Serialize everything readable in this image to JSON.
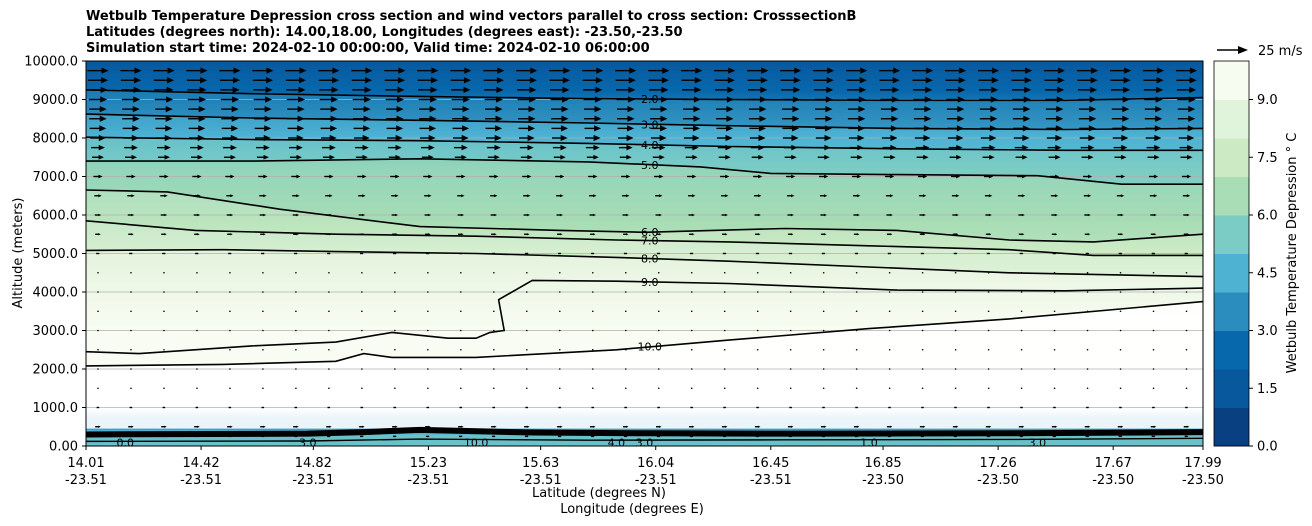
{
  "chart_data": {
    "type": "contour",
    "title": [
      "Wetbulb Temperature Depression cross section and wind vectors parallel to cross section: CrosssectionB",
      "Latitudes (degrees north): 14.00,18.00, Longitudes (degrees east): -23.50,-23.50",
      "Simulation start time: 2024-02-10 00:00:00, Valid time: 2024-02-10 06:00:00"
    ],
    "ylabel": "Altitude (meters)",
    "xlabel_lat": "Latitude (degrees N)",
    "xlabel_lon": "Longitude (degrees E)",
    "ylim": [
      0,
      10000
    ],
    "yticks": [
      "0.00",
      "1000.0",
      "2000.0",
      "3000.0",
      "4000.0",
      "5000.0",
      "6000.0",
      "7000.0",
      "8000.0",
      "9000.0",
      "10000.0"
    ],
    "xlim": [
      14.01,
      17.99
    ],
    "xticks": [
      {
        "lat": 14.01,
        "lat_label": "14.01",
        "lon_label": "-23.51"
      },
      {
        "lat": 14.42,
        "lat_label": "14.42",
        "lon_label": "-23.51"
      },
      {
        "lat": 14.82,
        "lat_label": "14.82",
        "lon_label": "-23.51"
      },
      {
        "lat": 15.23,
        "lat_label": "15.23",
        "lon_label": "-23.51"
      },
      {
        "lat": 15.63,
        "lat_label": "15.63",
        "lon_label": "-23.51"
      },
      {
        "lat": 16.04,
        "lat_label": "16.04",
        "lon_label": "-23.51"
      },
      {
        "lat": 16.45,
        "lat_label": "16.45",
        "lon_label": "-23.51"
      },
      {
        "lat": 16.85,
        "lat_label": "16.85",
        "lon_label": "-23.50"
      },
      {
        "lat": 17.26,
        "lat_label": "17.26",
        "lon_label": "-23.50"
      },
      {
        "lat": 17.67,
        "lat_label": "17.67",
        "lon_label": "-23.50"
      },
      {
        "lat": 17.99,
        "lat_label": "17.99",
        "lon_label": "-23.50"
      }
    ],
    "grid_y": true,
    "colorbar": {
      "label": "Wetbulb Temperature Depression ° C",
      "range": [
        0,
        10
      ],
      "ticks": [
        "0.0",
        "1.5",
        "3.0",
        "4.5",
        "6.0",
        "7.5",
        "9.0"
      ],
      "colors": [
        "#084081",
        "#08589e",
        "#0868ac",
        "#2b8cbe",
        "#4eb3d3",
        "#7bccc4",
        "#a8ddb5",
        "#ccebc5",
        "#e0f3db",
        "#f7fcf0"
      ]
    },
    "quiver_key": {
      "label": "25 m/s",
      "speed": 25
    },
    "contour_lines": [
      {
        "level": 2.0,
        "label": "2.0",
        "x": [
          14.01,
          14.6,
          15.2,
          15.8,
          16.3,
          16.9,
          17.5,
          17.99
        ],
        "z": [
          9250,
          9150,
          9080,
          9020,
          9000,
          8980,
          8980,
          9050
        ]
      },
      {
        "level": 3.0,
        "label": "3.0",
        "x": [
          14.01,
          14.6,
          15.2,
          15.8,
          16.3,
          16.9,
          17.5,
          17.99
        ],
        "z": [
          8620,
          8520,
          8460,
          8390,
          8320,
          8250,
          8220,
          8250
        ]
      },
      {
        "level": 4.0,
        "label": "4.0",
        "x": [
          14.01,
          14.6,
          15.2,
          15.8,
          16.3,
          16.9,
          17.5,
          17.99
        ],
        "z": [
          8020,
          7960,
          7930,
          7860,
          7780,
          7720,
          7680,
          7680
        ]
      },
      {
        "level": 5.0,
        "label": "5.0",
        "x": [
          14.01,
          14.6,
          15.2,
          15.8,
          16.2,
          16.45,
          16.9,
          17.4,
          17.7,
          17.99
        ],
        "z": [
          7400,
          7400,
          7460,
          7380,
          7250,
          7080,
          7050,
          7020,
          6800,
          6800
        ]
      },
      {
        "level": 6.0,
        "label": "6.0",
        "x": [
          14.01,
          14.3,
          14.7,
          15.2,
          15.7,
          16.0,
          16.5,
          16.9,
          17.3,
          17.6,
          17.99
        ],
        "z": [
          6650,
          6600,
          6150,
          5700,
          5600,
          5550,
          5650,
          5600,
          5350,
          5300,
          5500
        ]
      },
      {
        "level": 7.0,
        "label": "7.0",
        "x": [
          14.01,
          14.4,
          14.9,
          15.4,
          15.9,
          16.3,
          16.8,
          17.3,
          17.6,
          17.99
        ],
        "z": [
          5850,
          5600,
          5500,
          5450,
          5350,
          5300,
          5200,
          5100,
          4950,
          4950
        ]
      },
      {
        "level": 8.0,
        "label": "8.0",
        "x": [
          14.01,
          14.5,
          14.9,
          15.4,
          15.9,
          16.3,
          16.8,
          17.3,
          17.99
        ],
        "z": [
          5080,
          5100,
          5050,
          5000,
          4900,
          4800,
          4650,
          4500,
          4400
        ]
      },
      {
        "level": 9.0,
        "label": "9.0",
        "x": [
          14.01,
          14.2,
          14.6,
          14.9,
          15.1,
          15.3,
          15.4,
          15.45,
          15.5,
          15.48,
          15.6,
          15.9,
          16.3,
          16.9,
          17.5,
          17.99
        ],
        "z": [
          2450,
          2400,
          2600,
          2700,
          2950,
          2800,
          2800,
          2950,
          3000,
          3800,
          4300,
          4280,
          4220,
          4050,
          4030,
          4100
        ]
      },
      {
        "level": 10.0,
        "label": "10.0",
        "x": [
          14.01,
          14.5,
          14.9,
          15.0,
          15.1,
          15.4,
          15.9,
          16.3,
          16.8,
          17.3,
          17.99
        ],
        "z": [
          2080,
          2120,
          2200,
          2400,
          2300,
          2300,
          2500,
          2750,
          3050,
          3300,
          3750
        ]
      }
    ],
    "surface_labels": [
      "0.0",
      "3.0",
      "10.0",
      "4.0",
      "3.0",
      "1.0",
      "3.0"
    ],
    "wind_vectors": {
      "orientation": "parallel to cross section",
      "levels_m": [
        9750,
        9500,
        9250,
        9000,
        8750,
        8500,
        8250,
        8000,
        7750,
        7500,
        7000,
        6500,
        6000,
        5500,
        5000,
        4500,
        4000,
        3500,
        3000,
        2500,
        2000,
        1500,
        1000,
        500,
        250
      ],
      "speed_ms": [
        23,
        22,
        21,
        20,
        19,
        19,
        18,
        17,
        15,
        13,
        10,
        8,
        7,
        6,
        4,
        2,
        1,
        1,
        1,
        1,
        1,
        1,
        3,
        6,
        4
      ]
    }
  }
}
